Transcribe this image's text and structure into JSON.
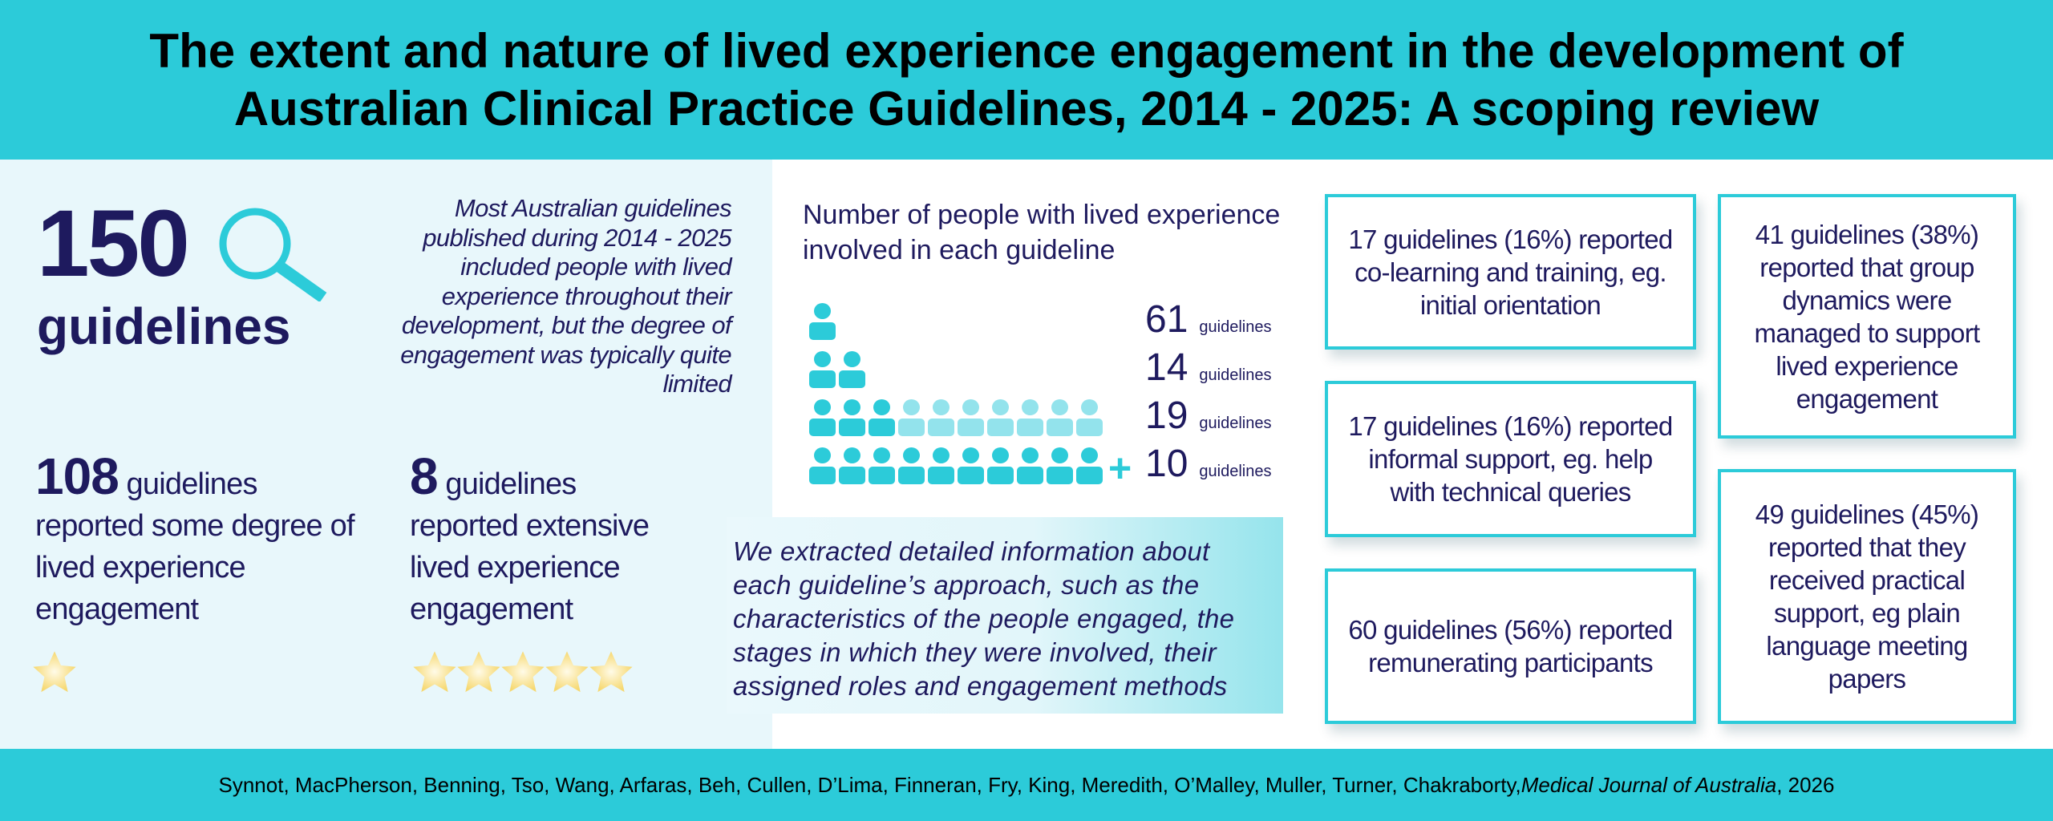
{
  "header": {
    "title_line1": "The extent and nature of lived experience engagement in the development of",
    "title_line2": "Australian Clinical Practice Guidelines, 2014 - 2025: A scoping review"
  },
  "overview": {
    "total_number": "150",
    "total_label": "guidelines",
    "icon": "magnifier-icon",
    "summary": "Most Australian guidelines published during 2014 - 2025 included people with lived experience throughout their development, but the degree of engagement was typically quite limited"
  },
  "stats": [
    {
      "number": "108",
      "unit": "guidelines",
      "text": "reported some degree of lived experience engagement",
      "stars": 1
    },
    {
      "number": "8",
      "unit": "guidelines",
      "text": "reported extensive lived experience engagement",
      "stars": 5
    }
  ],
  "chart_data": {
    "type": "pictogram",
    "title": "Number of people with lived experience involved in each guideline",
    "rows": [
      {
        "people": 1,
        "guidelines": 61,
        "label": "61",
        "unit": "guidelines"
      },
      {
        "people": 2,
        "guidelines": 14,
        "label": "14",
        "unit": "guidelines"
      },
      {
        "people": "3-10",
        "dark": 3,
        "light": 7,
        "guidelines": 19,
        "label": "19",
        "unit": "guidelines"
      },
      {
        "people": "10+",
        "dark": 10,
        "light": 0,
        "plus": "+",
        "guidelines": 10,
        "label": "10",
        "unit": "guidelines"
      }
    ],
    "colors": {
      "dark": "#2ccbd9",
      "light": "#93e3ec"
    }
  },
  "method_note": "We extracted detailed information about each guideline’s approach, such as the characteristics of the people engaged, the stages in which they were involved, their assigned roles and engagement methods",
  "findings": [
    "17 guidelines (16%) reported co-learning and training, eg. initial orientation",
    "17 guidelines (16%) reported informal support, eg. help with technical queries",
    "60 guidelines (56%) reported remunerating participants",
    "41 guidelines (38%) reported that group dynamics were managed to support lived experience engagement",
    "49 guidelines (45%) reported that they received practical support, eg plain language meeting papers"
  ],
  "footer": {
    "authors": "Synnot, MacPherson, Benning, Tso, Wang, Arfaras, Beh, Cullen, D’Lima, Finneran, Fry, King, Meredith, O’Malley, Muller, Turner, Chakraborty, ",
    "journal": "Medical Journal of Australia",
    "year": ", 2026"
  },
  "colors": {
    "teal": "#2ccbd9",
    "navy": "#1e1a5e",
    "panel": "#e8f7fb"
  }
}
